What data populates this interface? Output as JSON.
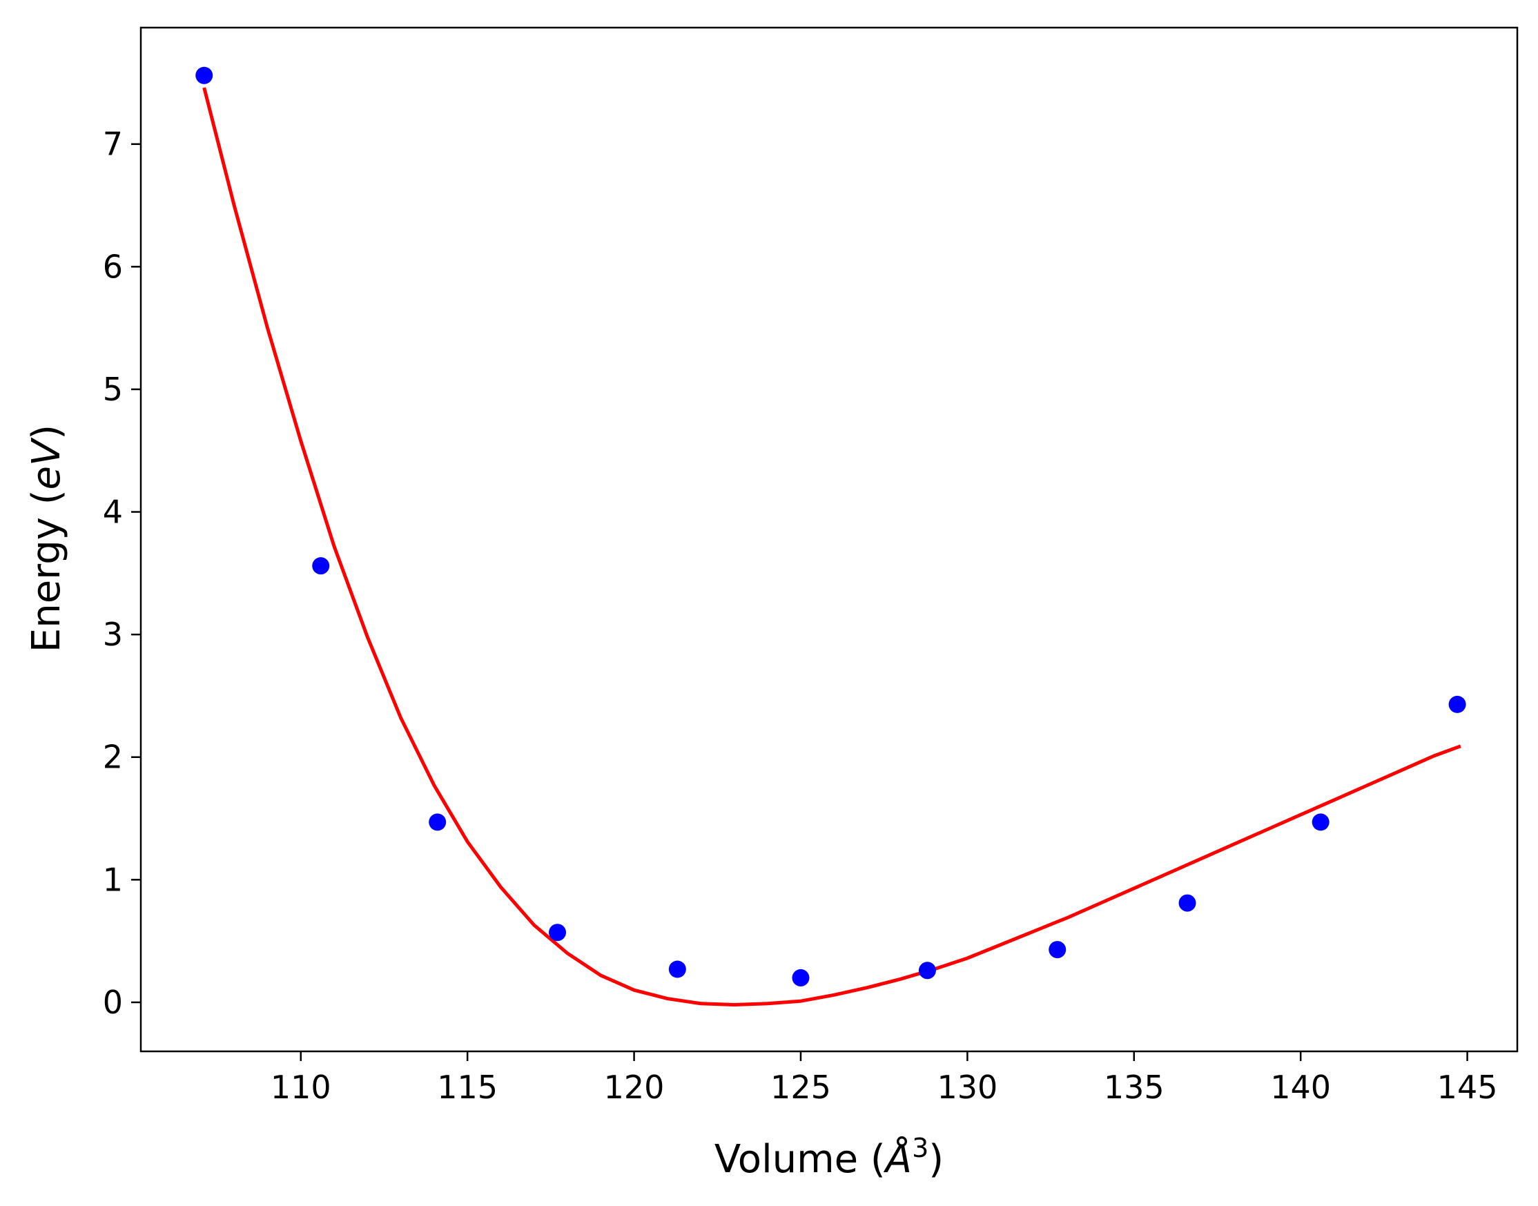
{
  "chart_data": {
    "type": "scatter",
    "xlabel": {
      "text": "Volume (",
      "symbol": "Å",
      "sup": "3",
      "close": ")"
    },
    "ylabel": {
      "text": "Energy (",
      "italic": "eV",
      "close": ")"
    },
    "xlim": [
      105.2,
      146.5
    ],
    "ylim": [
      -0.4,
      7.95
    ],
    "xticks": [
      110,
      115,
      120,
      125,
      130,
      135,
      140,
      145
    ],
    "yticks": [
      0,
      1,
      2,
      3,
      4,
      5,
      6,
      7
    ],
    "grid": false,
    "points": {
      "color": "#0000ff",
      "x": [
        107.1,
        110.6,
        114.1,
        117.7,
        121.3,
        125.0,
        128.8,
        132.7,
        136.6,
        140.6,
        144.7
      ],
      "y": [
        7.56,
        3.56,
        1.47,
        0.57,
        0.27,
        0.2,
        0.26,
        0.43,
        0.81,
        1.47,
        2.43
      ]
    },
    "fit": {
      "color": "#ff0000",
      "x": [
        107.1,
        108.0,
        109.0,
        110.0,
        111.0,
        112.0,
        113.0,
        114.0,
        115.0,
        116.0,
        117.0,
        118.0,
        119.0,
        120.0,
        121.0,
        122.0,
        123.0,
        124.0,
        125.0,
        126.0,
        127.0,
        128.0,
        129.0,
        130.0,
        131.0,
        132.0,
        133.0,
        134.0,
        135.0,
        136.0,
        137.0,
        138.0,
        139.0,
        140.0,
        141.0,
        142.0,
        143.0,
        144.0,
        144.8
      ],
      "y": [
        7.46,
        6.5,
        5.5,
        4.58,
        3.72,
        2.98,
        2.32,
        1.77,
        1.31,
        0.94,
        0.63,
        0.4,
        0.22,
        0.1,
        0.03,
        -0.01,
        -0.02,
        -0.01,
        0.01,
        0.06,
        0.12,
        0.19,
        0.27,
        0.36,
        0.47,
        0.58,
        0.69,
        0.81,
        0.93,
        1.05,
        1.17,
        1.29,
        1.41,
        1.53,
        1.65,
        1.77,
        1.89,
        2.01,
        2.09
      ]
    }
  }
}
